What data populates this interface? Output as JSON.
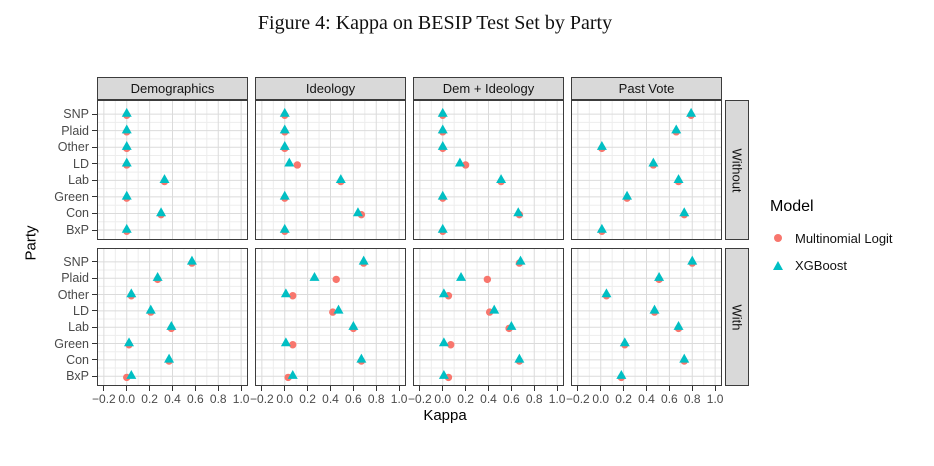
{
  "title": "Figure 4: Kappa on BESIP Test Set by Party",
  "chart_data": {
    "type": "scatter",
    "xlabel": "Kappa",
    "ylabel": "Party",
    "xlim": [
      -0.2,
      1.0
    ],
    "x_ticks": [
      -0.2,
      0.0,
      0.2,
      0.4,
      0.6,
      0.8,
      1.0
    ],
    "x_tick_labels": [
      "−0.2",
      "0.0",
      "0.2",
      "0.4",
      "0.6",
      "0.8",
      "1.0"
    ],
    "facet_cols": [
      "Demographics",
      "Ideology",
      "Dem + Ideology",
      "Past Vote"
    ],
    "facet_rows": [
      "Without",
      "With"
    ],
    "parties": [
      "SNP",
      "Plaid",
      "Other",
      "LD",
      "Lab",
      "Green",
      "Con",
      "BxP"
    ],
    "grid": "on",
    "legend": {
      "title": "Model",
      "position": "right",
      "items": [
        {
          "label": "Multinomial Logit",
          "marker": "circle",
          "color": "#F8766D"
        },
        {
          "label": "XGBoost",
          "marker": "triangle",
          "color": "#00BFC4"
        }
      ]
    },
    "panels": [
      {
        "facet_row": "Without",
        "facet_col": "Demographics",
        "multinomial_logit": [
          0.0,
          0.0,
          0.0,
          0.0,
          0.33,
          0.0,
          0.3,
          0.0
        ],
        "xgboost": [
          0.0,
          0.0,
          0.0,
          0.0,
          0.33,
          0.0,
          0.3,
          0.0
        ]
      },
      {
        "facet_row": "Without",
        "facet_col": "Ideology",
        "multinomial_logit": [
          0.0,
          0.0,
          0.0,
          0.11,
          0.49,
          0.0,
          0.67,
          0.0
        ],
        "xgboost": [
          0.0,
          0.0,
          0.0,
          0.04,
          0.49,
          0.0,
          0.64,
          0.0
        ]
      },
      {
        "facet_row": "Without",
        "facet_col": "Dem + Ideology",
        "multinomial_logit": [
          0.0,
          0.0,
          0.0,
          0.2,
          0.51,
          0.0,
          0.67,
          0.0
        ],
        "xgboost": [
          0.0,
          0.0,
          0.0,
          0.15,
          0.51,
          0.0,
          0.66,
          0.0
        ]
      },
      {
        "facet_row": "Without",
        "facet_col": "Past Vote",
        "multinomial_logit": [
          0.79,
          0.66,
          0.01,
          0.46,
          0.68,
          0.23,
          0.73,
          0.01
        ],
        "xgboost": [
          0.79,
          0.66,
          0.01,
          0.46,
          0.68,
          0.23,
          0.73,
          0.01
        ]
      },
      {
        "facet_row": "With",
        "facet_col": "Demographics",
        "multinomial_logit": [
          0.57,
          0.27,
          0.04,
          0.21,
          0.39,
          0.02,
          0.37,
          0.0
        ],
        "xgboost": [
          0.57,
          0.27,
          0.04,
          0.21,
          0.39,
          0.02,
          0.37,
          0.04
        ]
      },
      {
        "facet_row": "With",
        "facet_col": "Ideology",
        "multinomial_logit": [
          0.69,
          0.45,
          0.07,
          0.42,
          0.6,
          0.07,
          0.67,
          0.03
        ],
        "xgboost": [
          0.69,
          0.26,
          0.01,
          0.47,
          0.6,
          0.01,
          0.67,
          0.07
        ]
      },
      {
        "facet_row": "With",
        "facet_col": "Dem + Ideology",
        "multinomial_logit": [
          0.67,
          0.39,
          0.05,
          0.41,
          0.58,
          0.07,
          0.67,
          0.05
        ],
        "xgboost": [
          0.68,
          0.16,
          0.01,
          0.45,
          0.6,
          0.01,
          0.67,
          0.01
        ]
      },
      {
        "facet_row": "With",
        "facet_col": "Past Vote",
        "multinomial_logit": [
          0.8,
          0.51,
          0.05,
          0.47,
          0.68,
          0.21,
          0.73,
          0.18
        ],
        "xgboost": [
          0.8,
          0.51,
          0.05,
          0.47,
          0.68,
          0.21,
          0.73,
          0.18
        ]
      }
    ]
  }
}
